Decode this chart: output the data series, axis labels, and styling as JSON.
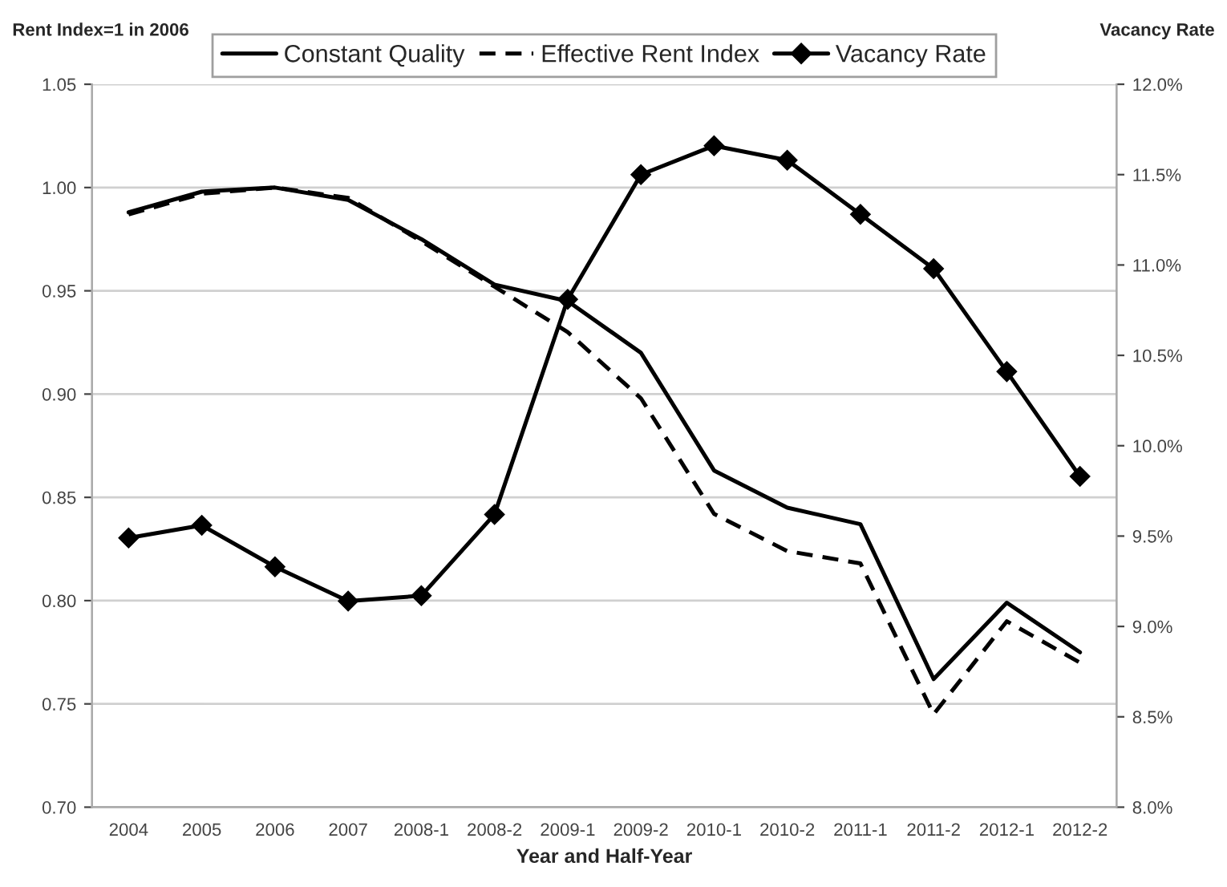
{
  "chart_data": {
    "type": "line",
    "xlabel": "Year and Half-Year",
    "ylabel": "Rent Index=1 in 2006",
    "y2label": "Vacancy Rate",
    "categories": [
      "2004",
      "2005",
      "2006",
      "2007",
      "2008-1",
      "2008-2",
      "2009-1",
      "2009-2",
      "2010-1",
      "2010-2",
      "2011-1",
      "2011-2",
      "2012-1",
      "2012-2"
    ],
    "series": [
      {
        "name": "Constant Quality",
        "color": "#000000",
        "line_style": "solid",
        "marker": "none",
        "values": [
          0.988,
          0.998,
          1.0,
          0.994,
          0.975,
          0.953,
          0.945,
          0.92,
          0.863,
          0.845,
          0.837,
          0.762,
          0.799,
          0.775
        ]
      },
      {
        "name": "Effective Rent Index",
        "color": "#000000",
        "line_style": "dashed",
        "marker": "none",
        "values": [
          0.987,
          0.997,
          1.0,
          0.995,
          0.974,
          0.952,
          0.93,
          0.898,
          0.842,
          0.824,
          0.818,
          0.745,
          0.79,
          0.77
        ]
      },
      {
        "name": "Vacancy Rate",
        "color": "#000000",
        "line_style": "solid",
        "marker": "diamond",
        "axis": "y2",
        "values": [
          9.49,
          9.56,
          9.33,
          9.14,
          9.17,
          9.62,
          10.81,
          11.5,
          11.66,
          11.58,
          11.28,
          10.98,
          10.41,
          9.83
        ]
      }
    ],
    "ylim": [
      0.7,
      1.05
    ],
    "yticks": [
      {
        "value": 0.7,
        "label": "0.70"
      },
      0.75,
      {
        "value": 0.8,
        "label": "0.80"
      },
      0.85,
      {
        "value": 0.9,
        "label": "0.90"
      },
      0.95,
      {
        "value": 1.0,
        "label": "1.00"
      },
      1.05
    ],
    "y2lim": [
      8.0,
      12.0
    ],
    "y2ticks": [
      {
        "value": 8.0,
        "label": "8.0%"
      },
      {
        "value": 8.5,
        "label": "8.5%"
      },
      {
        "value": 9.0,
        "label": "9.0%"
      },
      {
        "value": 9.5,
        "label": "9.5%"
      },
      {
        "value": 10.0,
        "label": "10.0%"
      },
      {
        "value": 10.5,
        "label": "10.5%"
      },
      {
        "value": 11.0,
        "label": "11.0%"
      },
      {
        "value": 11.5,
        "label": "11.5%"
      },
      {
        "value": 12.0,
        "label": "12.0%"
      }
    ],
    "grid": "y",
    "legend": "top"
  }
}
